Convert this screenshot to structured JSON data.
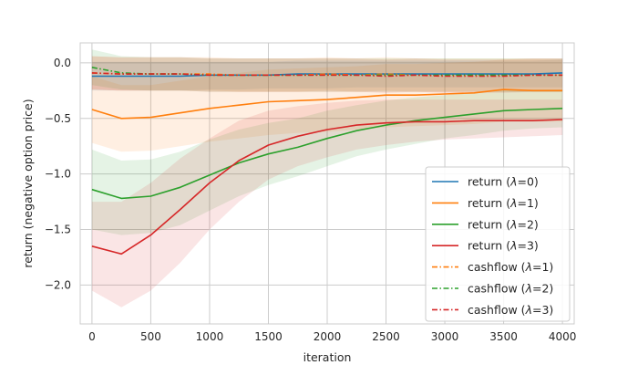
{
  "chart_data": {
    "type": "line",
    "xlabel": "iteration",
    "ylabel": "return (negative option price)",
    "xlim": [
      -100,
      4100
    ],
    "ylim": [
      -2.35,
      0.18
    ],
    "x_ticks": [
      0,
      500,
      1000,
      1500,
      2000,
      2500,
      3000,
      3500,
      4000
    ],
    "x_tick_labels": [
      "0",
      "500",
      "1000",
      "1500",
      "2000",
      "2500",
      "3000",
      "3500",
      "4000"
    ],
    "y_ticks": [
      0.0,
      -0.5,
      -1.0,
      -1.5,
      -2.0
    ],
    "y_tick_labels": [
      "0.0",
      "−0.5",
      "−1.0",
      "−1.5",
      "−2.0"
    ],
    "grid": true,
    "legend_position": "lower-right",
    "x": [
      0,
      250,
      500,
      750,
      1000,
      1250,
      1500,
      1750,
      2000,
      2250,
      2500,
      2750,
      3000,
      3250,
      3500,
      3750,
      4000
    ],
    "series": [
      {
        "name": "return (λ=0)",
        "legend_prefix": "return (",
        "legend_var": "λ",
        "legend_suffix": "=0)",
        "color": "#1f77b4",
        "style": "solid",
        "values": [
          -0.12,
          -0.12,
          -0.12,
          -0.12,
          -0.11,
          -0.11,
          -0.11,
          -0.1,
          -0.1,
          -0.1,
          -0.1,
          -0.1,
          -0.1,
          -0.1,
          -0.1,
          -0.1,
          -0.09
        ],
        "band_lower": [
          -0.25,
          -0.25,
          -0.25,
          -0.25,
          -0.24,
          -0.24,
          -0.23,
          -0.23,
          -0.23,
          -0.22,
          -0.22,
          -0.22,
          -0.22,
          -0.22,
          -0.22,
          -0.22,
          -0.22
        ],
        "band_upper": [
          0.01,
          0.01,
          0.01,
          0.01,
          0.01,
          0.01,
          0.01,
          0.02,
          0.02,
          0.02,
          0.02,
          0.02,
          0.02,
          0.02,
          0.02,
          0.02,
          0.03
        ]
      },
      {
        "name": "return (λ=1)",
        "legend_prefix": "return (",
        "legend_var": "λ",
        "legend_suffix": "=1)",
        "color": "#ff7f0e",
        "style": "solid",
        "values": [
          -0.42,
          -0.5,
          -0.49,
          -0.45,
          -0.41,
          -0.38,
          -0.35,
          -0.34,
          -0.33,
          -0.31,
          -0.29,
          -0.29,
          -0.28,
          -0.27,
          -0.24,
          -0.25,
          -0.25
        ],
        "band_lower": [
          -0.72,
          -0.8,
          -0.79,
          -0.75,
          -0.71,
          -0.68,
          -0.65,
          -0.63,
          -0.62,
          -0.6,
          -0.58,
          -0.57,
          -0.56,
          -0.55,
          -0.53,
          -0.53,
          -0.53
        ],
        "band_upper": [
          -0.12,
          -0.2,
          -0.2,
          -0.16,
          -0.12,
          -0.09,
          -0.06,
          -0.05,
          -0.04,
          -0.03,
          -0.01,
          -0.01,
          0.0,
          0.01,
          0.03,
          0.03,
          0.03
        ]
      },
      {
        "name": "return (λ=2)",
        "legend_prefix": "return (",
        "legend_var": "λ",
        "legend_suffix": "=2)",
        "color": "#2ca02c",
        "style": "solid",
        "values": [
          -1.14,
          -1.22,
          -1.2,
          -1.12,
          -1.01,
          -0.9,
          -0.82,
          -0.76,
          -0.68,
          -0.61,
          -0.56,
          -0.52,
          -0.49,
          -0.46,
          -0.43,
          -0.42,
          -0.41
        ],
        "band_lower": [
          -1.5,
          -1.55,
          -1.53,
          -1.46,
          -1.33,
          -1.2,
          -1.1,
          -1.02,
          -0.93,
          -0.84,
          -0.78,
          -0.73,
          -0.68,
          -0.65,
          -0.61,
          -0.59,
          -0.58
        ],
        "band_upper": [
          -0.78,
          -0.88,
          -0.87,
          -0.8,
          -0.69,
          -0.6,
          -0.54,
          -0.5,
          -0.43,
          -0.38,
          -0.34,
          -0.31,
          -0.29,
          -0.27,
          -0.25,
          -0.24,
          -0.24
        ]
      },
      {
        "name": "return (λ=3)",
        "legend_prefix": "return (",
        "legend_var": "λ",
        "legend_suffix": "=3)",
        "color": "#d62728",
        "style": "solid",
        "values": [
          -1.65,
          -1.72,
          -1.55,
          -1.32,
          -1.08,
          -0.88,
          -0.74,
          -0.66,
          -0.6,
          -0.56,
          -0.54,
          -0.53,
          -0.53,
          -0.52,
          -0.52,
          -0.52,
          -0.51
        ],
        "band_lower": [
          -2.05,
          -2.2,
          -2.05,
          -1.8,
          -1.5,
          -1.25,
          -1.05,
          -0.93,
          -0.85,
          -0.78,
          -0.74,
          -0.71,
          -0.69,
          -0.68,
          -0.67,
          -0.66,
          -0.65
        ],
        "band_upper": [
          -1.25,
          -1.25,
          -1.08,
          -0.86,
          -0.68,
          -0.52,
          -0.43,
          -0.39,
          -0.36,
          -0.34,
          -0.33,
          -0.33,
          -0.33,
          -0.33,
          -0.33,
          -0.33,
          -0.33
        ]
      },
      {
        "name": "cashflow (λ=1)",
        "legend_prefix": "cashflow (",
        "legend_var": "λ",
        "legend_suffix": "=1)",
        "color": "#ff7f0e",
        "style": "dashdot",
        "values": [
          -0.09,
          -0.1,
          -0.1,
          -0.1,
          -0.1,
          -0.11,
          -0.11,
          -0.11,
          -0.1,
          -0.11,
          -0.1,
          -0.11,
          -0.11,
          -0.11,
          -0.11,
          -0.11,
          -0.11
        ],
        "band_lower": [
          -0.24,
          -0.25,
          -0.25,
          -0.25,
          -0.25,
          -0.26,
          -0.26,
          -0.26,
          -0.25,
          -0.26,
          -0.25,
          -0.26,
          -0.26,
          -0.26,
          -0.26,
          -0.26,
          -0.26
        ],
        "band_upper": [
          0.06,
          0.05,
          0.05,
          0.05,
          0.05,
          0.04,
          0.04,
          0.04,
          0.05,
          0.04,
          0.05,
          0.04,
          0.04,
          0.04,
          0.04,
          0.04,
          0.04
        ]
      },
      {
        "name": "cashflow (λ=2)",
        "legend_prefix": "cashflow (",
        "legend_var": "λ",
        "legend_suffix": "=2)",
        "color": "#2ca02c",
        "style": "dashdot",
        "values": [
          -0.04,
          -0.09,
          -0.1,
          -0.1,
          -0.11,
          -0.11,
          -0.11,
          -0.11,
          -0.11,
          -0.11,
          -0.11,
          -0.11,
          -0.11,
          -0.11,
          -0.11,
          -0.11,
          -0.11
        ],
        "band_lower": [
          -0.2,
          -0.24,
          -0.25,
          -0.25,
          -0.26,
          -0.26,
          -0.26,
          -0.26,
          -0.26,
          -0.26,
          -0.26,
          -0.26,
          -0.26,
          -0.26,
          -0.26,
          -0.26,
          -0.26
        ],
        "band_upper": [
          0.12,
          0.06,
          0.05,
          0.05,
          0.04,
          0.04,
          0.04,
          0.04,
          0.04,
          0.04,
          0.04,
          0.04,
          0.04,
          0.04,
          0.04,
          0.04,
          0.04
        ]
      },
      {
        "name": "cashflow (λ=3)",
        "legend_prefix": "cashflow (",
        "legend_var": "λ",
        "legend_suffix": "=3)",
        "color": "#d62728",
        "style": "dashdot",
        "values": [
          -0.09,
          -0.1,
          -0.1,
          -0.1,
          -0.11,
          -0.11,
          -0.11,
          -0.11,
          -0.11,
          -0.11,
          -0.12,
          -0.11,
          -0.12,
          -0.12,
          -0.12,
          -0.11,
          -0.11
        ],
        "band_lower": [
          -0.24,
          -0.25,
          -0.25,
          -0.25,
          -0.26,
          -0.26,
          -0.26,
          -0.26,
          -0.26,
          -0.26,
          -0.27,
          -0.26,
          -0.27,
          -0.27,
          -0.27,
          -0.26,
          -0.26
        ],
        "band_upper": [
          0.06,
          0.05,
          0.05,
          0.05,
          0.04,
          0.04,
          0.04,
          0.04,
          0.04,
          0.04,
          0.03,
          0.04,
          0.03,
          0.03,
          0.03,
          0.04,
          0.04
        ]
      }
    ]
  }
}
